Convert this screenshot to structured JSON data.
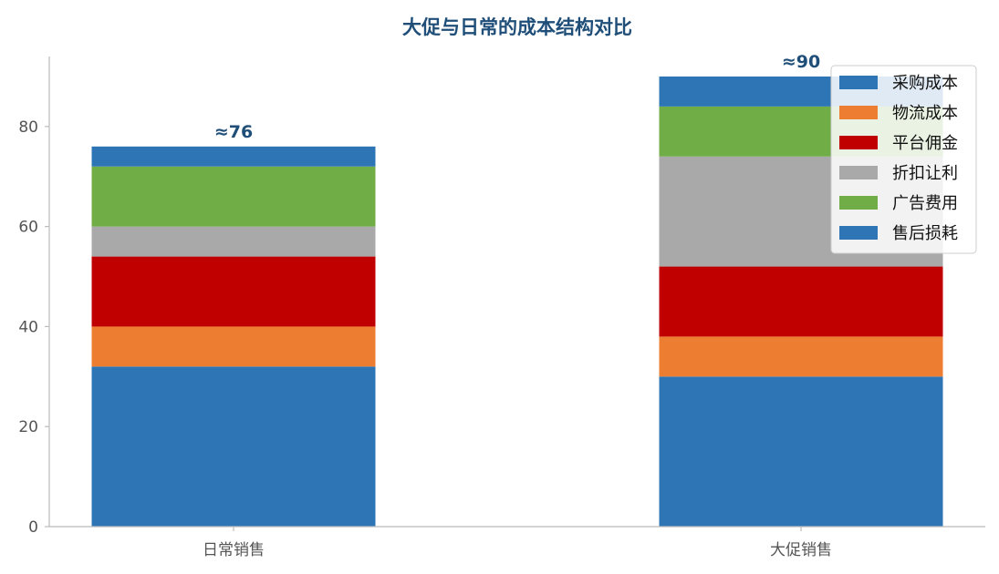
{
  "chart_data": {
    "type": "bar",
    "stacked": true,
    "title": "大促与日常的成本结构对比",
    "categories": [
      "日常销售",
      "大促销售"
    ],
    "series": [
      {
        "name": "采购成本",
        "color": "#2e75b6",
        "values": [
          32,
          30
        ]
      },
      {
        "name": "物流成本",
        "color": "#ed7d31",
        "values": [
          8,
          8
        ]
      },
      {
        "name": "平台佣金",
        "color": "#c00000",
        "values": [
          14,
          14
        ]
      },
      {
        "name": "折扣让利",
        "color": "#a9a9a9",
        "values": [
          6,
          22
        ]
      },
      {
        "name": "广告费用",
        "color": "#70ad47",
        "values": [
          12,
          10
        ]
      },
      {
        "name": "售后损耗",
        "color": "#2e75b6",
        "values": [
          4,
          6
        ]
      }
    ],
    "totals": [
      "≈76",
      "≈90"
    ],
    "ylim": [
      0,
      94
    ],
    "yticks": [
      0,
      20,
      40,
      60,
      80
    ],
    "xlabel": "",
    "ylabel": "",
    "grid": false,
    "legend_position": "top-right"
  },
  "style": {
    "title_color": "#1f4e79",
    "total_label_color": "#1f4e79",
    "axis_color": "#bbbbbb"
  }
}
